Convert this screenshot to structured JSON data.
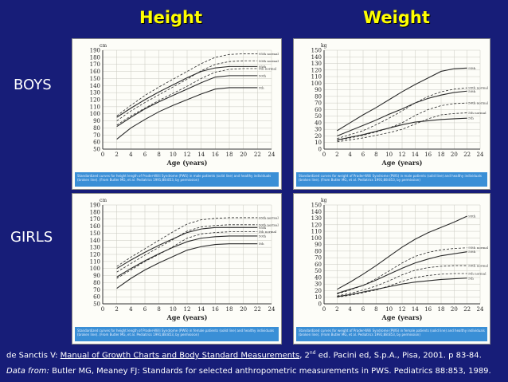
{
  "headings": {
    "height": "Height",
    "weight": "Weight"
  },
  "rows": {
    "boys": "BOYS",
    "girls": "GIRLS"
  },
  "references": {
    "line1_author": "de Sanctis V: ",
    "line1_title": "Manual of Growth Charts and Body Standard Measurements",
    "line1_sep": ", 2",
    "line1_sup": "nd",
    "line1_rest": " ed. Pacini ed, S.p.A., Pisa, 2001. p 83-84.",
    "line2_label": "Data from:",
    "line2_rest": " Butler MG, Meaney FJ: Standards for selected anthropometric measurements in  PWS. Pediatrics 88:853, 1989."
  },
  "colors": {
    "background": "#171d78",
    "heading": "#ffff00",
    "caption": "#3a8fd6"
  },
  "chart_data": [
    {
      "type": "line",
      "title": "Height",
      "row": "BOYS",
      "unit": "cm",
      "xlabel": "Age (years)",
      "ylabel": "",
      "x": [
        2,
        4,
        6,
        8,
        10,
        12,
        14,
        16,
        18,
        20,
        22
      ],
      "xlim": [
        0,
        24
      ],
      "xticks": [
        0,
        2,
        4,
        6,
        8,
        10,
        12,
        14,
        16,
        18,
        20,
        22,
        24
      ],
      "ylim": [
        50,
        190
      ],
      "yticks": [
        50,
        60,
        70,
        80,
        90,
        100,
        110,
        120,
        130,
        140,
        150,
        160,
        170,
        180,
        190
      ],
      "series": [
        {
          "name": "95th normal",
          "style": "dashed",
          "values": [
            97,
            112,
            126,
            138,
            149,
            160,
            171,
            180,
            184,
            185,
            185
          ]
        },
        {
          "name": "50th normal",
          "style": "dashed",
          "values": [
            90,
            104,
            116,
            127,
            138,
            149,
            161,
            170,
            174,
            175,
            175
          ]
        },
        {
          "name": "5th normal",
          "style": "dashed",
          "values": [
            84,
            97,
            108,
            119,
            129,
            139,
            150,
            159,
            163,
            164,
            164
          ]
        },
        {
          "name": "95th",
          "style": "solid",
          "values": [
            95,
            108,
            120,
            131,
            141,
            151,
            160,
            165,
            167,
            167,
            167
          ]
        },
        {
          "name": "50th",
          "style": "solid",
          "values": [
            82,
            95,
            107,
            117,
            126,
            135,
            144,
            152,
            154,
            154,
            154
          ]
        },
        {
          "name": "5th",
          "style": "solid",
          "values": [
            64,
            80,
            92,
            103,
            112,
            120,
            128,
            135,
            137,
            137,
            137
          ]
        }
      ],
      "caption": "Standardized curves for height length of Prader-Willi Syndrome (PWS) in male patients (solid line) and healthy individuals (broken line). (From Butler MG, et al. Pediatrics 1991;88:853, by permission)"
    },
    {
      "type": "line",
      "title": "Weight",
      "row": "BOYS",
      "unit": "kg",
      "xlabel": "Age (years)",
      "ylabel": "",
      "x": [
        2,
        4,
        6,
        8,
        10,
        12,
        14,
        16,
        18,
        20,
        22
      ],
      "xlim": [
        0,
        24
      ],
      "xticks": [
        0,
        2,
        4,
        6,
        8,
        10,
        12,
        14,
        16,
        18,
        20,
        22,
        24
      ],
      "ylim": [
        0,
        150
      ],
      "yticks": [
        0,
        10,
        20,
        30,
        40,
        50,
        60,
        70,
        80,
        90,
        100,
        110,
        120,
        130,
        140,
        150
      ],
      "series": [
        {
          "name": "95th",
          "style": "solid",
          "values": [
            28,
            40,
            52,
            63,
            75,
            87,
            98,
            108,
            118,
            122,
            123
          ]
        },
        {
          "name": "95th normal",
          "style": "dashed",
          "values": [
            16,
            22,
            28,
            37,
            47,
            58,
            70,
            80,
            87,
            91,
            93
          ]
        },
        {
          "name": "50th",
          "style": "solid",
          "values": [
            20,
            28,
            36,
            44,
            53,
            61,
            70,
            77,
            82,
            86,
            88
          ]
        },
        {
          "name": "50th normal",
          "style": "dashed",
          "values": [
            13,
            17,
            21,
            26,
            32,
            40,
            51,
            60,
            66,
            69,
            70
          ]
        },
        {
          "name": "5th normal",
          "style": "dashed",
          "values": [
            11,
            14,
            17,
            21,
            25,
            30,
            38,
            46,
            52,
            54,
            55
          ]
        },
        {
          "name": "5th",
          "style": "solid",
          "values": [
            14,
            18,
            22,
            27,
            32,
            37,
            41,
            43,
            45,
            46,
            47
          ]
        }
      ],
      "caption": "Standardized curves for weight of Prader-Willi Syndrome (PWS) in male patients (solid line) and healthy individuals (broken line). (From Butler MG, et al. Pediatrics 1991;88:853, by permission)"
    },
    {
      "type": "line",
      "title": "Height",
      "row": "GIRLS",
      "unit": "cm",
      "xlabel": "Age (years)",
      "ylabel": "",
      "x": [
        2,
        4,
        6,
        8,
        10,
        12,
        14,
        16,
        18,
        20,
        22
      ],
      "xlim": [
        0,
        24
      ],
      "xticks": [
        0,
        2,
        4,
        6,
        8,
        10,
        12,
        14,
        16,
        18,
        20,
        22,
        24
      ],
      "ylim": [
        50,
        190
      ],
      "yticks": [
        50,
        60,
        70,
        80,
        90,
        100,
        110,
        120,
        130,
        140,
        150,
        160,
        170,
        180,
        190
      ],
      "series": [
        {
          "name": "95th normal",
          "style": "dashed",
          "values": [
            103,
            116,
            128,
            140,
            152,
            163,
            169,
            171,
            172,
            172,
            172
          ]
        },
        {
          "name": "50th normal",
          "style": "dashed",
          "values": [
            95,
            107,
            119,
            130,
            141,
            153,
            159,
            161,
            162,
            162,
            162
          ]
        },
        {
          "name": "5th normal",
          "style": "dashed",
          "values": [
            86,
            98,
            110,
            120,
            131,
            143,
            149,
            151,
            152,
            152,
            152
          ]
        },
        {
          "name": "95th",
          "style": "solid",
          "values": [
            100,
            112,
            123,
            133,
            142,
            151,
            156,
            158,
            158,
            158,
            158
          ]
        },
        {
          "name": "50th",
          "style": "solid",
          "values": [
            88,
            100,
            111,
            121,
            130,
            138,
            143,
            145,
            146,
            146,
            146
          ]
        },
        {
          "name": "5th",
          "style": "solid",
          "values": [
            72,
            86,
            98,
            108,
            117,
            126,
            131,
            134,
            135,
            135,
            135
          ]
        }
      ],
      "caption": "Standardized curves for height length of Prader-Willi Syndrome (PWS) in female patients (solid line) and healthy individuals (broken line). (From Butler MG, et al. Pediatrics 1991;88:853, by permission)"
    },
    {
      "type": "line",
      "title": "Weight",
      "row": "GIRLS",
      "unit": "kg",
      "xlabel": "Age (years)",
      "ylabel": "",
      "x": [
        2,
        4,
        6,
        8,
        10,
        12,
        14,
        16,
        18,
        20,
        22
      ],
      "xlim": [
        0,
        24
      ],
      "xticks": [
        0,
        2,
        4,
        6,
        8,
        10,
        12,
        14,
        16,
        18,
        20,
        22,
        24
      ],
      "ylim": [
        0,
        150
      ],
      "yticks": [
        0,
        10,
        20,
        30,
        40,
        50,
        60,
        70,
        80,
        90,
        100,
        110,
        120,
        130,
        140,
        150
      ],
      "series": [
        {
          "name": "95th",
          "style": "solid",
          "values": [
            22,
            33,
            45,
            58,
            72,
            86,
            98,
            108,
            116,
            124,
            133
          ]
        },
        {
          "name": "95th normal",
          "style": "dashed",
          "values": [
            15,
            21,
            28,
            38,
            50,
            62,
            72,
            78,
            82,
            84,
            85
          ]
        },
        {
          "name": "50th",
          "style": "solid",
          "values": [
            16,
            22,
            28,
            36,
            45,
            54,
            62,
            68,
            73,
            76,
            79
          ]
        },
        {
          "name": "50th normal",
          "style": "dashed",
          "values": [
            12,
            16,
            21,
            27,
            35,
            44,
            51,
            55,
            57,
            58,
            58
          ]
        },
        {
          "name": "5th normal",
          "style": "dashed",
          "values": [
            10,
            13,
            17,
            21,
            27,
            34,
            40,
            43,
            45,
            46,
            46
          ]
        },
        {
          "name": "5th",
          "style": "solid",
          "values": [
            11,
            14,
            18,
            22,
            26,
            30,
            33,
            35,
            37,
            38,
            39
          ]
        }
      ],
      "caption": "Standardized curves for weight of Prader-Willi Syndrome (PWS) in female patients (solid line) and healthy individuals (broken line). (From Butler MG, et al. Pediatrics 1991;88:853, by permission)"
    }
  ]
}
